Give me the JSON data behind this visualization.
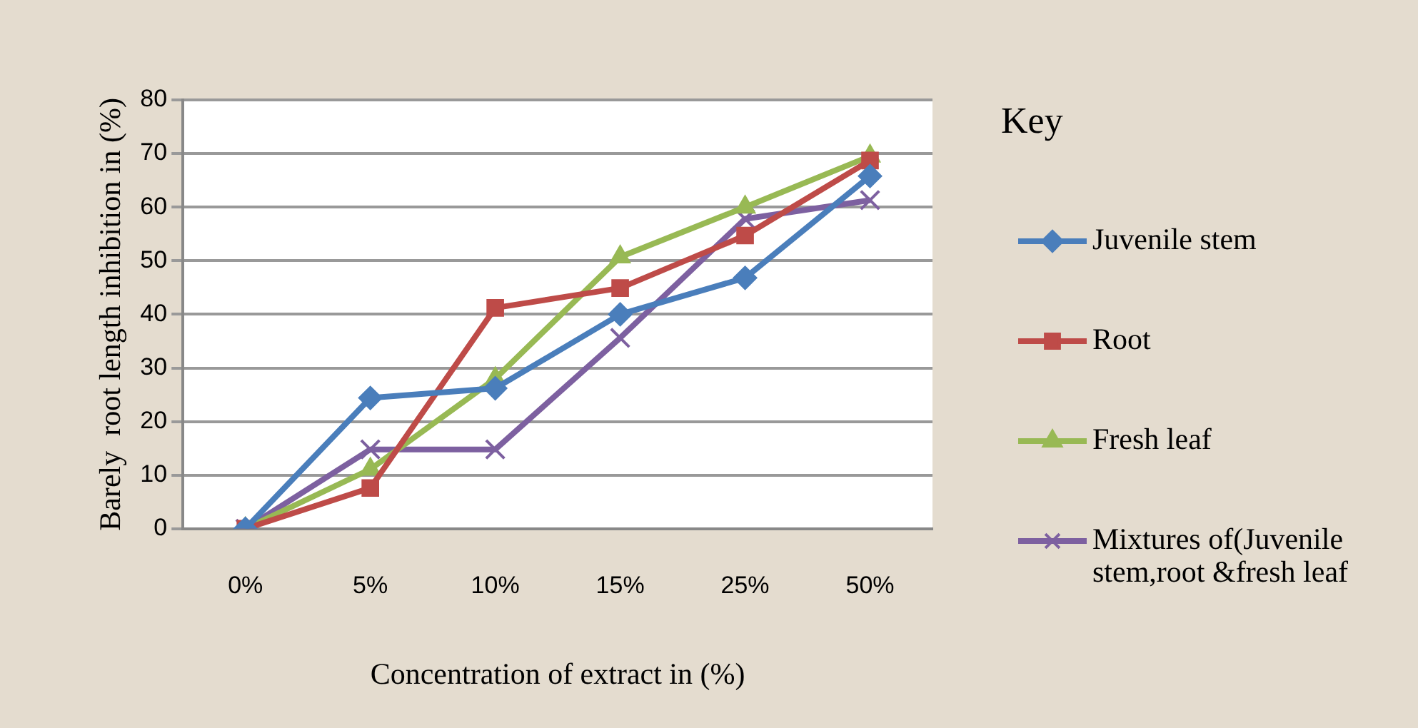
{
  "chart_data": {
    "type": "line",
    "xlabel": "Concentration of extract in (%)",
    "ylabel": "Barely  root length inhibition in (%)",
    "legend_title": "Key",
    "legend": "right",
    "grid": "y",
    "line_style": "solid",
    "categories": [
      "0%",
      "5%",
      "10%",
      "15%",
      "25%",
      "50%"
    ],
    "ylim": [
      0,
      80
    ],
    "yticks": [
      0,
      10,
      20,
      30,
      40,
      50,
      60,
      70,
      80
    ],
    "series": [
      {
        "name": "Juvenile stem",
        "color": "#4a7ebb",
        "marker": "diamond",
        "values": [
          0,
          24.4,
          26.2,
          40,
          46.8,
          65.8
        ]
      },
      {
        "name": "Root",
        "color": "#be4b48",
        "marker": "square",
        "values": [
          0,
          7.6,
          41.2,
          44.9,
          54.7,
          68.7
        ]
      },
      {
        "name": "Fresh leaf",
        "color": "#98b954",
        "marker": "triangle",
        "values": [
          0,
          11.1,
          28,
          50.7,
          60,
          69.5
        ]
      },
      {
        "name": "Mixtures of(Juvenile stem,root &fresh leaf",
        "color": "#7d60a0",
        "marker": "cross",
        "values": [
          0,
          14.8,
          14.8,
          35.6,
          57.8,
          61.3
        ]
      }
    ]
  }
}
